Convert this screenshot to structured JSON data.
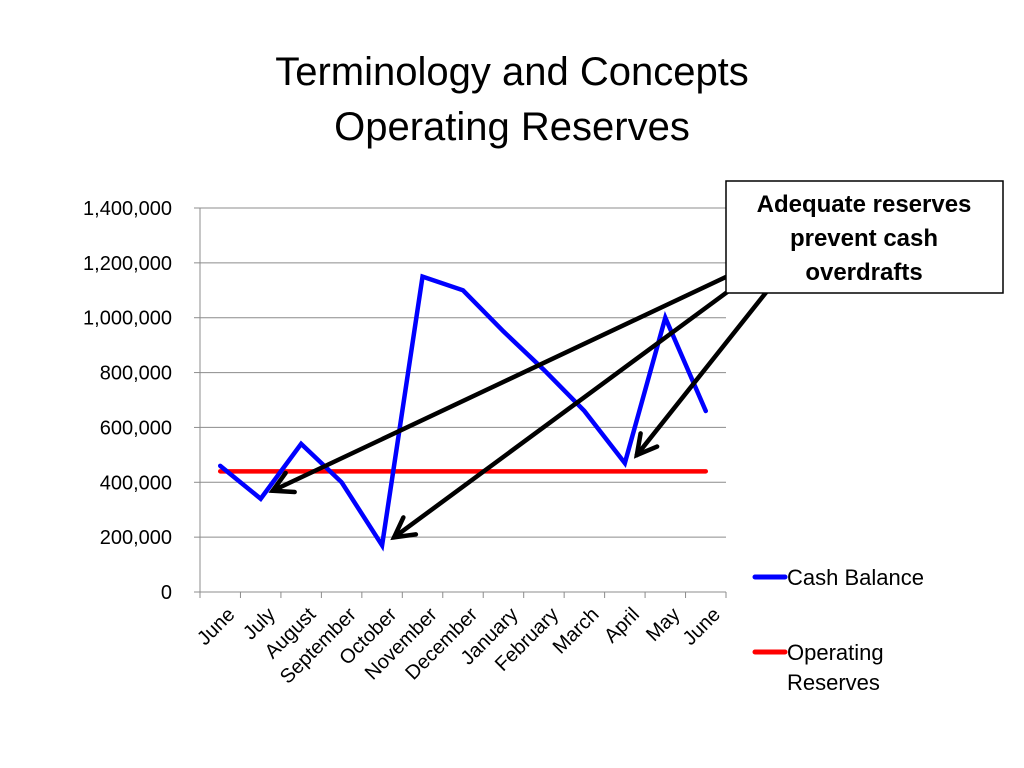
{
  "slide": {
    "title_line1": "Terminology and Concepts",
    "title_line2": "Operating Reserves"
  },
  "callout": {
    "line1": "Adequate reserves",
    "line2": "prevent cash",
    "line3": "overdrafts"
  },
  "colors": {
    "cash_balance": "#0000ff",
    "operating_reserves": "#ff0000",
    "gridline": "#8c8c8c",
    "arrow": "#000000"
  },
  "chart_data": {
    "type": "line",
    "title": "",
    "xlabel": "",
    "ylabel": "",
    "categories": [
      "June",
      "July",
      "August",
      "September",
      "October",
      "November",
      "December",
      "January",
      "February",
      "March",
      "April",
      "May",
      "June"
    ],
    "ylim": [
      0,
      1400000
    ],
    "yticks": [
      0,
      200000,
      400000,
      600000,
      800000,
      1000000,
      1200000,
      1400000
    ],
    "ytick_labels": [
      "0",
      "200,000",
      "400,000",
      "600,000",
      "800,000",
      "1,000,000",
      "1,200,000",
      "1,400,000"
    ],
    "grid": true,
    "legend_position": "right",
    "series": [
      {
        "name": "Cash Balance",
        "values": [
          460000,
          340000,
          540000,
          400000,
          170000,
          1150000,
          1100000,
          950000,
          810000,
          660000,
          470000,
          1000000,
          660000
        ]
      },
      {
        "name": "Operating Reserves",
        "values": [
          440000,
          440000,
          440000,
          440000,
          440000,
          440000,
          440000,
          440000,
          440000,
          440000,
          440000,
          440000,
          440000
        ]
      }
    ],
    "annotations": {
      "arrow_targets": [
        {
          "category_index": 1,
          "value": 340000
        },
        {
          "category_index": 4,
          "value": 170000
        },
        {
          "category_index": 10,
          "value": 470000
        }
      ]
    }
  }
}
